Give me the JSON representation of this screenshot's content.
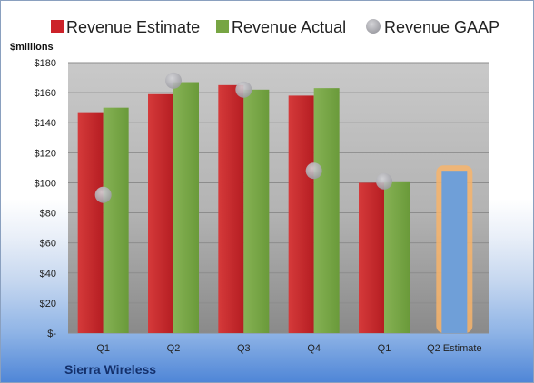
{
  "company": "Sierra Wireless",
  "chart_data": {
    "type": "bar",
    "ylabel": "$millions",
    "ylim": [
      0,
      180
    ],
    "y_ticks": [
      "$-",
      "$20",
      "$40",
      "$60",
      "$80",
      "$100",
      "$120",
      "$140",
      "$160",
      "$180"
    ],
    "grid": true,
    "legend_position": "top",
    "categories": [
      "Q1",
      "Q2",
      "Q3",
      "Q4",
      "Q1",
      "Q2 Estimate"
    ],
    "series": [
      {
        "name": "Revenue Estimate",
        "type": "bar",
        "color": "#cc2229",
        "values": [
          147,
          159,
          165,
          158,
          100,
          null
        ]
      },
      {
        "name": "Revenue Actual",
        "type": "bar",
        "color": "#77a543",
        "values": [
          150,
          167,
          162,
          163,
          101,
          null
        ]
      },
      {
        "name": "Revenue GAAP",
        "type": "scatter",
        "color": "#a9a9ae",
        "values": [
          92,
          168,
          162,
          108,
          101,
          null
        ]
      }
    ],
    "projection": {
      "category": "Q2 Estimate",
      "value": 108,
      "color": "#6f9fd8",
      "glow": "#f7b46b"
    }
  }
}
